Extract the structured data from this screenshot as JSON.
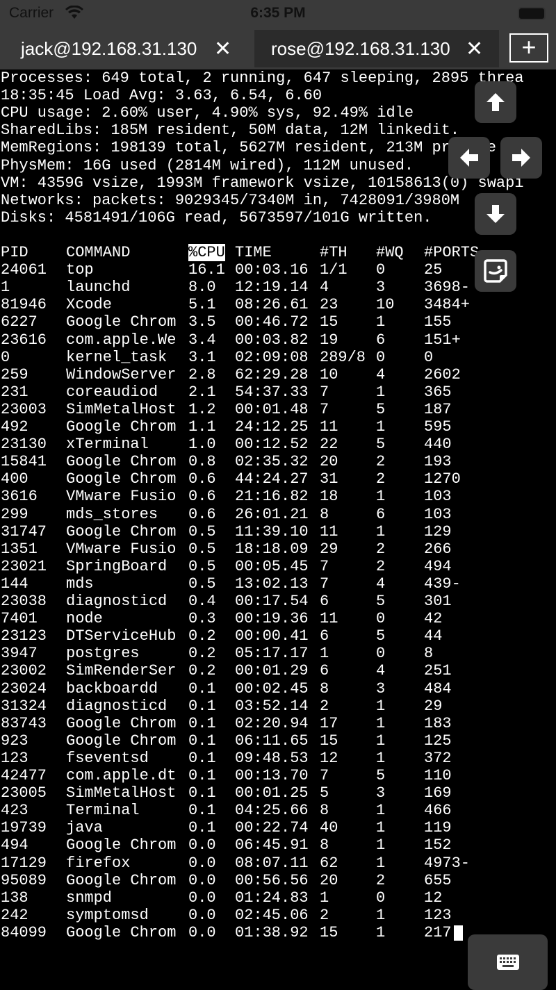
{
  "status_bar": {
    "carrier": "Carrier",
    "time": "6:35 PM"
  },
  "tabs": [
    {
      "label": "jack@192.168.31.130",
      "close": "✕"
    },
    {
      "label": "rose@192.168.31.130",
      "close": "✕"
    }
  ],
  "new_tab": "+",
  "summary": [
    "Processes: 649 total, 2 running, 647 sleeping, 2895 threa",
    "18:35:45 Load Avg: 3.63, 6.54, 6.60",
    "CPU usage: 2.60% user, 4.90% sys, 92.49% idle",
    "SharedLibs: 185M resident, 50M data, 12M linkedit.",
    "MemRegions: 198139 total, 5627M resident, 213M private",
    "PhysMem: 16G used (2814M wired), 112M unused.",
    "VM: 4359G vsize, 1993M framework vsize, 10158613(0) swapi",
    "Networks: packets: 9029345/7340M in, 7428091/3980M",
    "Disks: 4581491/106G read, 5673597/101G written."
  ],
  "columns": [
    "PID",
    "COMMAND",
    "%CPU",
    "TIME",
    "#TH",
    "#WQ",
    "#PORTS"
  ],
  "sorted_column": "%CPU",
  "rows": [
    [
      "24061",
      "top",
      "16.1",
      "00:03.16",
      "1/1",
      "0",
      "25"
    ],
    [
      "1",
      "launchd",
      "8.0",
      "12:19.14",
      "4",
      "3",
      "3698-"
    ],
    [
      "81946",
      "Xcode",
      "5.1",
      "08:26.61",
      "23",
      "10",
      "3484+"
    ],
    [
      "6227",
      "Google Chrom",
      "3.5",
      "00:46.72",
      "15",
      "1",
      "155"
    ],
    [
      "23616",
      "com.apple.We",
      "3.4",
      "00:03.82",
      "19",
      "6",
      "151+"
    ],
    [
      "0",
      "kernel_task",
      "3.1",
      "02:09:08",
      "289/8",
      "0",
      "0"
    ],
    [
      "259",
      "WindowServer",
      "2.8",
      "62:29.28",
      "10",
      "4",
      "2602"
    ],
    [
      "231",
      "coreaudiod",
      "2.1",
      "54:37.33",
      "7",
      "1",
      "365"
    ],
    [
      "23003",
      "SimMetalHost",
      "1.2",
      "00:01.48",
      "7",
      "5",
      "187"
    ],
    [
      "492",
      "Google Chrom",
      "1.1",
      "24:12.25",
      "11",
      "1",
      "595"
    ],
    [
      "23130",
      "xTerminal",
      "1.0",
      "00:12.52",
      "22",
      "5",
      "440"
    ],
    [
      "15841",
      "Google Chrom",
      "0.8",
      "02:35.32",
      "20",
      "2",
      "193"
    ],
    [
      "400",
      "Google Chrom",
      "0.6",
      "44:24.27",
      "31",
      "2",
      "1270"
    ],
    [
      "3616",
      "VMware Fusio",
      "0.6",
      "21:16.82",
      "18",
      "1",
      "103"
    ],
    [
      "299",
      "mds_stores",
      "0.6",
      "26:01.21",
      "8",
      "6",
      "103"
    ],
    [
      "31747",
      "Google Chrom",
      "0.5",
      "11:39.10",
      "11",
      "1",
      "129"
    ],
    [
      "1351",
      "VMware Fusio",
      "0.5",
      "18:18.09",
      "29",
      "2",
      "266"
    ],
    [
      "23021",
      "SpringBoard",
      "0.5",
      "00:05.45",
      "7",
      "2",
      "494"
    ],
    [
      "144",
      "mds",
      "0.5",
      "13:02.13",
      "7",
      "4",
      "439-"
    ],
    [
      "23038",
      "diagnosticd",
      "0.4",
      "00:17.54",
      "6",
      "5",
      "301"
    ],
    [
      "7401",
      "node",
      "0.3",
      "00:19.36",
      "11",
      "0",
      "42"
    ],
    [
      "23123",
      "DTServiceHub",
      "0.2",
      "00:00.41",
      "6",
      "5",
      "44"
    ],
    [
      "3947",
      "postgres",
      "0.2",
      "05:17.17",
      "1",
      "0",
      "8"
    ],
    [
      "23002",
      "SimRenderSer",
      "0.2",
      "00:01.29",
      "6",
      "4",
      "251"
    ],
    [
      "23024",
      "backboardd",
      "0.1",
      "00:02.45",
      "8",
      "3",
      "484"
    ],
    [
      "31324",
      "diagnosticd",
      "0.1",
      "03:52.14",
      "2",
      "1",
      "29"
    ],
    [
      "83743",
      "Google Chrom",
      "0.1",
      "02:20.94",
      "17",
      "1",
      "183"
    ],
    [
      "923",
      "Google Chrom",
      "0.1",
      "06:11.65",
      "15",
      "1",
      "125"
    ],
    [
      "123",
      "fseventsd",
      "0.1",
      "09:48.53",
      "12",
      "1",
      "372"
    ],
    [
      "42477",
      "com.apple.dt",
      "0.1",
      "00:13.70",
      "7",
      "5",
      "110"
    ],
    [
      "23005",
      "SimMetalHost",
      "0.1",
      "00:01.25",
      "5",
      "3",
      "169"
    ],
    [
      "423",
      "Terminal",
      "0.1",
      "04:25.66",
      "8",
      "1",
      "466"
    ],
    [
      "19739",
      "java",
      "0.1",
      "00:22.74",
      "40",
      "1",
      "119"
    ],
    [
      "494",
      "Google Chrom",
      "0.0",
      "06:45.91",
      "8",
      "1",
      "152"
    ],
    [
      "17129",
      "firefox",
      "0.0",
      "08:07.11",
      "62",
      "1",
      "4973-"
    ],
    [
      "95089",
      "Google Chrom",
      "0.0",
      "00:56.56",
      "20",
      "2",
      "655"
    ],
    [
      "138",
      "snmpd",
      "0.0",
      "01:24.83",
      "1",
      "0",
      "12"
    ],
    [
      "242",
      "symptomsd",
      "0.0",
      "02:45.06",
      "2",
      "1",
      "123"
    ],
    [
      "84099",
      "Google Chrom",
      "0.0",
      "01:38.92",
      "15",
      "1",
      "217"
    ]
  ],
  "controls": {
    "up": "arrow-up",
    "left": "arrow-left",
    "right": "arrow-right",
    "down": "arrow-down",
    "sticker": "sticker",
    "keyboard": "keyboard"
  }
}
